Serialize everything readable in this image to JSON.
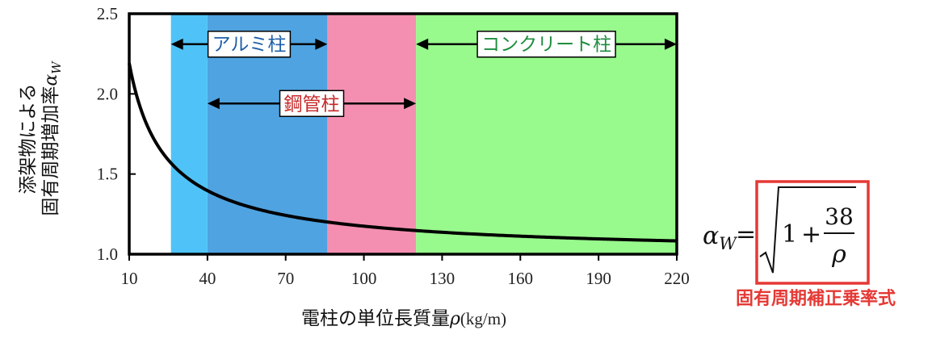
{
  "chart_data": {
    "type": "line",
    "xlabel": "電柱の単位長質量",
    "xlabel_symbol": "ρ",
    "xlabel_unit": "(kg/m)",
    "ylabel_line1": "添架物による",
    "ylabel_line2": "固有周期増加率",
    "ylabel_symbol": "α",
    "ylabel_symbol_sub": "W",
    "xlim": [
      10,
      220
    ],
    "ylim": [
      1.0,
      2.5
    ],
    "x_ticks": [
      10,
      40,
      70,
      100,
      130,
      160,
      190,
      220
    ],
    "y_ticks": [
      "1.0",
      "1.5",
      "2.0",
      "2.5"
    ],
    "grid": false,
    "series": [
      {
        "formula": "sqrt(1 + 38/rho)",
        "x_start": 10,
        "x_end": 220
      }
    ],
    "regions": [
      {
        "x0": 26,
        "x1": 40,
        "color": "#4FC3F7"
      },
      {
        "x0": 40,
        "x1": 86,
        "color": "#4FA3E0"
      },
      {
        "x0": 86,
        "x1": 120,
        "color": "#F48FB1"
      },
      {
        "x0": 120,
        "x1": 220,
        "color": "#98F98C"
      }
    ],
    "ranges": [
      {
        "label": "アルミ柱",
        "x_from": 26,
        "x_to": 86,
        "level": 2.31,
        "text_color": "#1F5FA8"
      },
      {
        "label": "鋼管柱",
        "x_from": 40,
        "x_to": 120,
        "level": 1.94,
        "text_color": "#C62828"
      },
      {
        "label": "コンクリート柱",
        "x_from": 120,
        "x_to": 220,
        "level": 2.31,
        "text_color": "#1E8E3E"
      }
    ]
  },
  "formula": {
    "lhs": "α",
    "lhs_sub": "W",
    "equals": "=",
    "one": "1",
    "plus": "+",
    "numerator": "38",
    "denominator": "ρ",
    "caption": "固有周期補正乗率式",
    "box_color": "#E53935"
  }
}
